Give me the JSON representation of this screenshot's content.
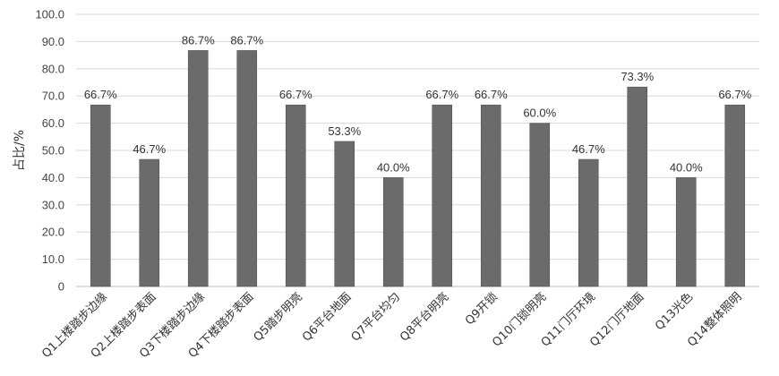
{
  "chart_data": {
    "type": "bar",
    "categories": [
      "Q1上楼踏步边缘",
      "Q2上楼踏步表面",
      "Q3下楼踏步边缘",
      "Q4下楼踏步表面",
      "Q5踏步明亮",
      "Q6平台地面",
      "Q7平台均匀",
      "Q8平台明亮",
      "Q9开锁",
      "Q10门锁明亮",
      "Q11门厅环境",
      "Q12门厅地面",
      "Q13光色",
      "Q14整体照明"
    ],
    "values": [
      66.7,
      46.7,
      86.7,
      86.7,
      66.7,
      53.3,
      40.0,
      66.7,
      66.7,
      60.0,
      46.7,
      73.3,
      40.0,
      66.7
    ],
    "data_labels": [
      "66.7%",
      "46.7%",
      "86.7%",
      "86.7%",
      "66.7%",
      "53.3%",
      "40.0%",
      "66.7%",
      "66.7%",
      "60.0%",
      "46.7%",
      "73.3%",
      "40.0%",
      "66.7%"
    ],
    "ylabel": "占比/%",
    "xlabel": "",
    "ylim": [
      0,
      100
    ],
    "yticks": [
      "0",
      "10.0",
      "20.0",
      "30.0",
      "40.0",
      "50.0",
      "60.0",
      "70.0",
      "80.0",
      "90.0",
      "100.0"
    ],
    "grid": "horizontal",
    "bar_color": "#6b6b6b",
    "legend": "none"
  }
}
